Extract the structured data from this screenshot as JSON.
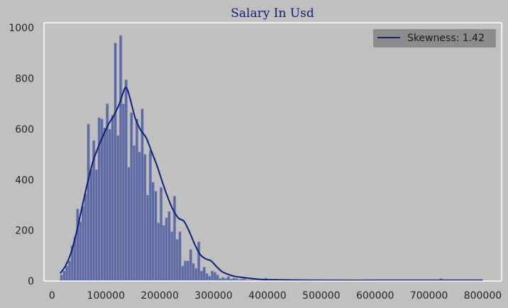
{
  "colors": {
    "background": "#c0c0c0",
    "bar_fill": "#5b6aa0",
    "bar_edge": "#9aa3c4",
    "kde_line": "#0b1f7a",
    "title": "#0f1d7a",
    "axis_spine": "#ffffff",
    "legend_bg": "#8c8c8c"
  },
  "chart_data": {
    "type": "bar",
    "title": "Salary In Usd",
    "xlabel": "",
    "ylabel": "",
    "xlim": [
      -15000,
      835000
    ],
    "ylim": [
      0,
      1020
    ],
    "x_ticks": [
      0,
      100000,
      200000,
      300000,
      400000,
      500000,
      600000,
      700000,
      800000
    ],
    "y_ticks": [
      0,
      200,
      400,
      600,
      800,
      1000
    ],
    "grid": false,
    "legend": {
      "placement": "top-right",
      "entries": [
        "Skewness: 1.42"
      ]
    },
    "histogram": {
      "bin_start": 15000,
      "bin_width": 5000,
      "counts": [
        25,
        40,
        60,
        80,
        140,
        175,
        285,
        235,
        295,
        345,
        620,
        440,
        555,
        440,
        645,
        640,
        605,
        700,
        600,
        655,
        940,
        575,
        970,
        700,
        795,
        450,
        665,
        535,
        640,
        510,
        680,
        500,
        340,
        515,
        390,
        355,
        230,
        370,
        220,
        250,
        275,
        195,
        335,
        165,
        195,
        60,
        80,
        80,
        125,
        70,
        50,
        155,
        40,
        55,
        30,
        20,
        40,
        35,
        25,
        10,
        15,
        10,
        18,
        8,
        12,
        10,
        6,
        8,
        10,
        5,
        5,
        6,
        4,
        4,
        3,
        3,
        12,
        3,
        3,
        3,
        3,
        2,
        3,
        2,
        2,
        2,
        2,
        2,
        2,
        2,
        2,
        2,
        2,
        2,
        2,
        2,
        2,
        2,
        2,
        2,
        2,
        2,
        2,
        2,
        2,
        2,
        2,
        2,
        2,
        2,
        2,
        2,
        2,
        2,
        2,
        2,
        2,
        2,
        2,
        2,
        2,
        2,
        2,
        2,
        2,
        2,
        2,
        2,
        2,
        2,
        2,
        2,
        2,
        2,
        2,
        2,
        2,
        2,
        2,
        2,
        2,
        10,
        2,
        2,
        2,
        2,
        2,
        2,
        4,
        2,
        2,
        2,
        2,
        2,
        2,
        2,
        2
      ]
    },
    "kde": {
      "name": "Skewness: 1.42",
      "x": [
        15000,
        25000,
        35000,
        45000,
        55000,
        65000,
        75000,
        85000,
        95000,
        105000,
        115000,
        125000,
        135000,
        140000,
        145000,
        155000,
        165000,
        175000,
        185000,
        195000,
        205000,
        215000,
        225000,
        235000,
        245000,
        255000,
        265000,
        275000,
        285000,
        295000,
        305000,
        315000,
        325000,
        340000,
        355000,
        370000,
        390000,
        420000,
        450000,
        500000,
        600000,
        700000,
        730000,
        760000,
        800000
      ],
      "y": [
        30,
        60,
        110,
        190,
        285,
        380,
        465,
        525,
        575,
        620,
        655,
        700,
        760,
        755,
        720,
        640,
        595,
        565,
        510,
        455,
        390,
        330,
        280,
        248,
        236,
        195,
        145,
        105,
        88,
        80,
        58,
        38,
        28,
        18,
        14,
        10,
        6,
        5,
        4,
        3,
        3,
        3,
        3,
        3,
        3
      ]
    }
  }
}
